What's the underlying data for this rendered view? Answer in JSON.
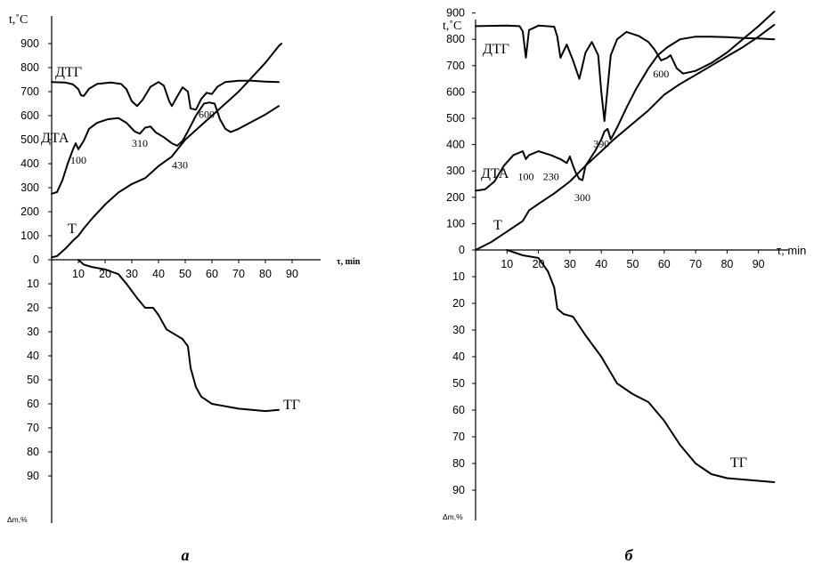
{
  "chart_data": [
    {
      "type": "line",
      "panel_label": "а",
      "y_top_label": "t,˚C",
      "y_bottom_label": "Δm,%",
      "x_label": "τ, min",
      "x_ticks": [
        "10",
        "20",
        "30",
        "40",
        "50",
        "60",
        "70",
        "80",
        "90"
      ],
      "y_top_ticks": [
        "0",
        "100",
        "200",
        "300",
        "400",
        "500",
        "600",
        "700",
        "800",
        "900"
      ],
      "y_bottom_ticks": [
        "10",
        "20",
        "30",
        "40",
        "50",
        "60",
        "70",
        "80",
        "90"
      ],
      "xlim": [
        0,
        95
      ],
      "ylim_top": [
        0,
        950
      ],
      "ylim_bottom": [
        0,
        95
      ],
      "grid": false,
      "series": [
        {
          "name": "Т",
          "axis": "top",
          "points": [
            [
              0,
              10
            ],
            [
              2,
              15
            ],
            [
              5,
              45
            ],
            [
              8,
              80
            ],
            [
              10,
              100
            ],
            [
              12,
              130
            ],
            [
              15,
              170
            ],
            [
              20,
              230
            ],
            [
              25,
              280
            ],
            [
              30,
              315
            ],
            [
              35,
              340
            ],
            [
              40,
              390
            ],
            [
              45,
              430
            ],
            [
              50,
              500
            ],
            [
              55,
              550
            ],
            [
              60,
              600
            ],
            [
              65,
              650
            ],
            [
              70,
              700
            ],
            [
              75,
              760
            ],
            [
              80,
              820
            ],
            [
              85,
              890
            ],
            [
              86,
              900
            ]
          ]
        },
        {
          "name": "ДТА",
          "axis": "top",
          "points": [
            [
              0,
              275
            ],
            [
              2,
              282
            ],
            [
              4,
              330
            ],
            [
              6,
              400
            ],
            [
              8,
              460
            ],
            [
              9,
              485
            ],
            [
              10,
              460
            ],
            [
              12,
              495
            ],
            [
              14,
              545
            ],
            [
              17,
              570
            ],
            [
              21,
              585
            ],
            [
              25,
              590
            ],
            [
              28,
              570
            ],
            [
              31,
              535
            ],
            [
              33,
              525
            ],
            [
              35,
              550
            ],
            [
              37,
              555
            ],
            [
              39,
              530
            ],
            [
              42,
              510
            ],
            [
              45,
              485
            ],
            [
              47,
              475
            ],
            [
              49,
              495
            ],
            [
              51,
              535
            ],
            [
              54,
              600
            ],
            [
              57,
              650
            ],
            [
              59,
              655
            ],
            [
              61,
              650
            ],
            [
              63,
              585
            ],
            [
              65,
              545
            ],
            [
              67,
              532
            ],
            [
              70,
              545
            ],
            [
              75,
              575
            ],
            [
              80,
              605
            ],
            [
              85,
              640
            ]
          ]
        },
        {
          "name": "ДТГ",
          "axis": "top",
          "points": [
            [
              0,
              740
            ],
            [
              5,
              738
            ],
            [
              8,
              730
            ],
            [
              10,
              710
            ],
            [
              11,
              685
            ],
            [
              12,
              682
            ],
            [
              14,
              712
            ],
            [
              17,
              732
            ],
            [
              22,
              738
            ],
            [
              26,
              732
            ],
            [
              28,
              710
            ],
            [
              30,
              660
            ],
            [
              32,
              640
            ],
            [
              34,
              665
            ],
            [
              37,
              720
            ],
            [
              40,
              740
            ],
            [
              42,
              725
            ],
            [
              44,
              660
            ],
            [
              45,
              640
            ],
            [
              47,
              680
            ],
            [
              49,
              718
            ],
            [
              51,
              700
            ],
            [
              52,
              630
            ],
            [
              54,
              625
            ],
            [
              56,
              670
            ],
            [
              58,
              695
            ],
            [
              60,
              690
            ],
            [
              62,
              720
            ],
            [
              65,
              740
            ],
            [
              70,
              745
            ],
            [
              75,
              745
            ],
            [
              80,
              742
            ],
            [
              85,
              740
            ]
          ]
        },
        {
          "name": "ТГ",
          "axis": "bottom",
          "points": [
            [
              10,
              0
            ],
            [
              12,
              2
            ],
            [
              15,
              3
            ],
            [
              20,
              4
            ],
            [
              25,
              6
            ],
            [
              28,
              10
            ],
            [
              32,
              16
            ],
            [
              35,
              20
            ],
            [
              38,
              20
            ],
            [
              40,
              23
            ],
            [
              43,
              29
            ],
            [
              46,
              31
            ],
            [
              49,
              33
            ],
            [
              51,
              36
            ],
            [
              52,
              45
            ],
            [
              54,
              53
            ],
            [
              56,
              57
            ],
            [
              60,
              60
            ],
            [
              65,
              61
            ],
            [
              70,
              62
            ],
            [
              75,
              62.5
            ],
            [
              80,
              63
            ],
            [
              85,
              62.5
            ]
          ]
        }
      ],
      "annotations": [
        {
          "text": "100",
          "x": 10,
          "y": 400
        },
        {
          "text": "310",
          "x": 33,
          "y": 470
        },
        {
          "text": "430",
          "x": 48,
          "y": 380
        },
        {
          "text": "600",
          "x": 58,
          "y": 590
        }
      ]
    },
    {
      "type": "line",
      "panel_label": "б",
      "y_top_label": "t,˚C",
      "y_bottom_label": "Δm,%",
      "x_label": "τ, min",
      "x_ticks": [
        "10",
        "20",
        "30",
        "40",
        "50",
        "60",
        "70",
        "80",
        "90"
      ],
      "y_top_ticks": [
        "0",
        "100",
        "200",
        "300",
        "400",
        "500",
        "600",
        "700",
        "800",
        "900"
      ],
      "y_bottom_ticks": [
        "10",
        "20",
        "30",
        "40",
        "50",
        "60",
        "70",
        "80",
        "90"
      ],
      "xlim": [
        0,
        98
      ],
      "ylim_top": [
        0,
        950
      ],
      "ylim_bottom": [
        0,
        95
      ],
      "grid": false,
      "series": [
        {
          "name": "Т",
          "axis": "top",
          "points": [
            [
              0,
              0
            ],
            [
              5,
              30
            ],
            [
              10,
              70
            ],
            [
              15,
              110
            ],
            [
              17,
              150
            ],
            [
              20,
              175
            ],
            [
              25,
              215
            ],
            [
              30,
              260
            ],
            [
              35,
              320
            ],
            [
              40,
              375
            ],
            [
              44,
              420
            ],
            [
              50,
              480
            ],
            [
              55,
              530
            ],
            [
              60,
              590
            ],
            [
              65,
              630
            ],
            [
              70,
              665
            ],
            [
              75,
              700
            ],
            [
              80,
              735
            ],
            [
              85,
              770
            ],
            [
              90,
              810
            ],
            [
              95,
              855
            ]
          ]
        },
        {
          "name": "ДТА",
          "axis": "top",
          "points": [
            [
              0,
              225
            ],
            [
              3,
              230
            ],
            [
              6,
              260
            ],
            [
              9,
              320
            ],
            [
              12,
              360
            ],
            [
              15,
              375
            ],
            [
              16,
              345
            ],
            [
              17,
              360
            ],
            [
              20,
              375
            ],
            [
              24,
              360
            ],
            [
              27,
              345
            ],
            [
              29,
              330
            ],
            [
              30,
              355
            ],
            [
              31,
              320
            ],
            [
              32,
              290
            ],
            [
              33,
              270
            ],
            [
              34,
              265
            ],
            [
              35,
              320
            ],
            [
              38,
              375
            ],
            [
              40,
              420
            ],
            [
              41,
              450
            ],
            [
              42,
              460
            ],
            [
              43,
              420
            ],
            [
              45,
              465
            ],
            [
              48,
              540
            ],
            [
              51,
              610
            ],
            [
              55,
              690
            ],
            [
              58,
              740
            ],
            [
              61,
              770
            ],
            [
              65,
              800
            ],
            [
              70,
              810
            ],
            [
              75,
              810
            ],
            [
              80,
              808
            ],
            [
              85,
              805
            ],
            [
              90,
              803
            ],
            [
              95,
              800
            ]
          ]
        },
        {
          "name": "ДТГ",
          "axis": "top",
          "points": [
            [
              0,
              850
            ],
            [
              10,
              852
            ],
            [
              14,
              850
            ],
            [
              15,
              830
            ],
            [
              16,
              730
            ],
            [
              17,
              835
            ],
            [
              20,
              852
            ],
            [
              25,
              848
            ],
            [
              26,
              810
            ],
            [
              27,
              730
            ],
            [
              29,
              780
            ],
            [
              31,
              720
            ],
            [
              33,
              650
            ],
            [
              35,
              750
            ],
            [
              37,
              790
            ],
            [
              39,
              740
            ],
            [
              40,
              600
            ],
            [
              41,
              490
            ],
            [
              43,
              740
            ],
            [
              45,
              800
            ],
            [
              48,
              828
            ],
            [
              52,
              812
            ],
            [
              55,
              790
            ],
            [
              57,
              760
            ],
            [
              59,
              720
            ],
            [
              61,
              730
            ],
            [
              62,
              740
            ],
            [
              64,
              690
            ],
            [
              66,
              670
            ],
            [
              70,
              680
            ],
            [
              75,
              710
            ],
            [
              80,
              750
            ],
            [
              85,
              800
            ],
            [
              90,
              850
            ],
            [
              95,
              905
            ]
          ]
        },
        {
          "name": "ТГ",
          "axis": "bottom",
          "points": [
            [
              10,
              0
            ],
            [
              15,
              2
            ],
            [
              20,
              3
            ],
            [
              23,
              8
            ],
            [
              25,
              14
            ],
            [
              26,
              22
            ],
            [
              28,
              24
            ],
            [
              31,
              25
            ],
            [
              35,
              32
            ],
            [
              40,
              40
            ],
            [
              43,
              46
            ],
            [
              45,
              50
            ],
            [
              50,
              54
            ],
            [
              55,
              57
            ],
            [
              60,
              64
            ],
            [
              65,
              73
            ],
            [
              70,
              80
            ],
            [
              75,
              84
            ],
            [
              80,
              85.5
            ],
            [
              85,
              86
            ],
            [
              90,
              86.5
            ],
            [
              95,
              87
            ]
          ]
        }
      ],
      "annotations": [
        {
          "text": "100",
          "x": 16,
          "y": 265
        },
        {
          "text": "230",
          "x": 24,
          "y": 265
        },
        {
          "text": "300",
          "x": 34,
          "y": 185
        },
        {
          "text": "390",
          "x": 40,
          "y": 390
        },
        {
          "text": "600",
          "x": 59,
          "y": 655
        }
      ]
    }
  ],
  "figure": {
    "curve_labels": [
      "ДТГ",
      "ДТА",
      "Т",
      "ТГ"
    ]
  }
}
